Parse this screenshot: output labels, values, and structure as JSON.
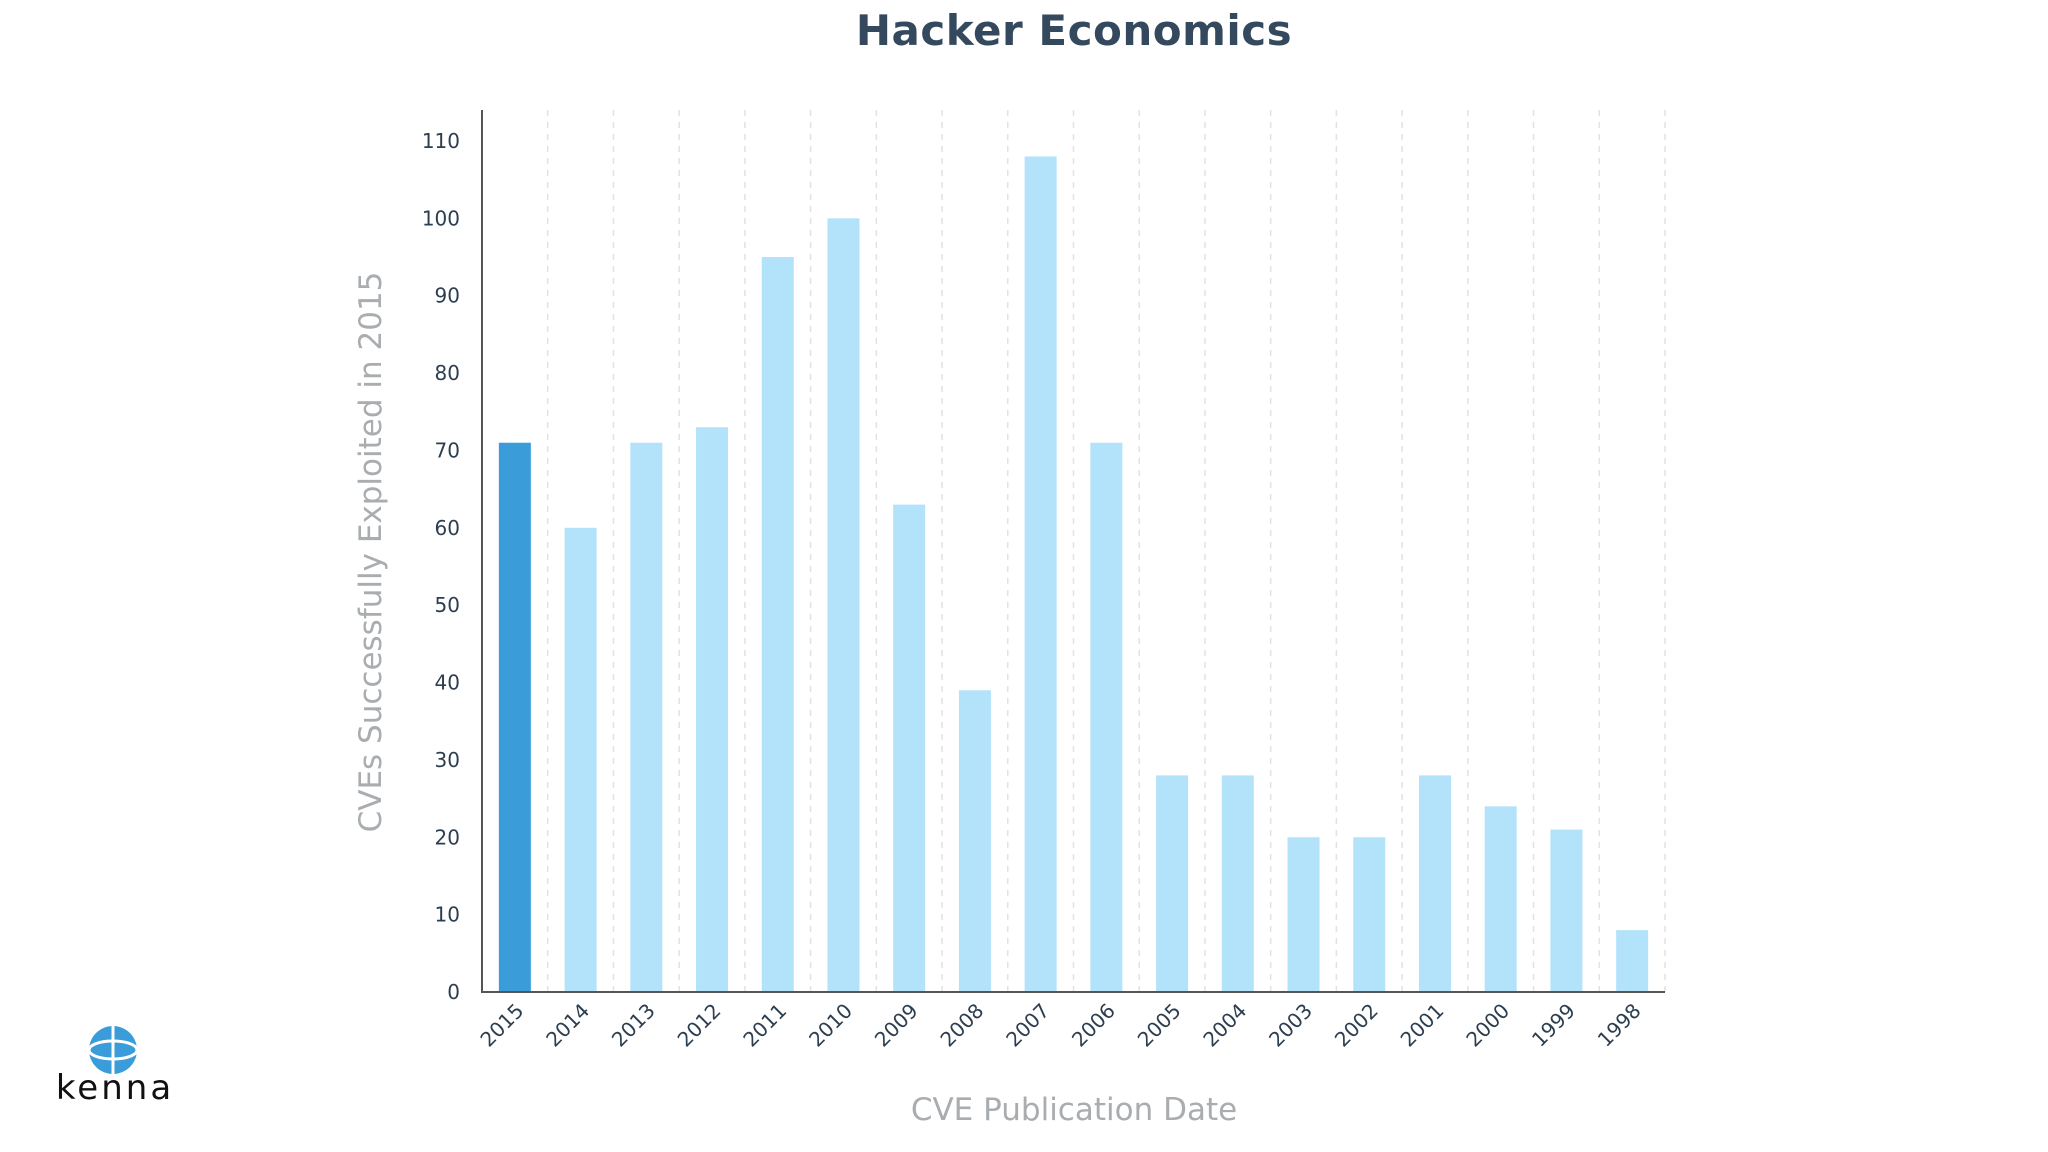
{
  "chart_data": {
    "type": "bar",
    "title": "Hacker Economics",
    "xlabel": "CVE Publication Date",
    "ylabel": "CVEs Successfully Exploited in 2015",
    "categories": [
      "2015",
      "2014",
      "2013",
      "2012",
      "2011",
      "2010",
      "2009",
      "2008",
      "2007",
      "2006",
      "2005",
      "2004",
      "2003",
      "2002",
      "2001",
      "2000",
      "1999",
      "1998"
    ],
    "values": [
      71,
      60,
      71,
      73,
      95,
      100,
      63,
      39,
      108,
      71,
      28,
      28,
      20,
      20,
      28,
      24,
      21,
      8
    ],
    "highlight_index": 0,
    "ylim": [
      0,
      110
    ],
    "yticks": [
      0,
      10,
      20,
      30,
      40,
      50,
      60,
      70,
      80,
      90,
      100,
      110
    ],
    "grid": "vertical-dashed",
    "colors": {
      "bar": "#b3e3fb",
      "highlight": "#3a9cd9",
      "axis": "#555555",
      "grid": "#dfe3e6"
    }
  },
  "logo": {
    "text": "kenna"
  }
}
